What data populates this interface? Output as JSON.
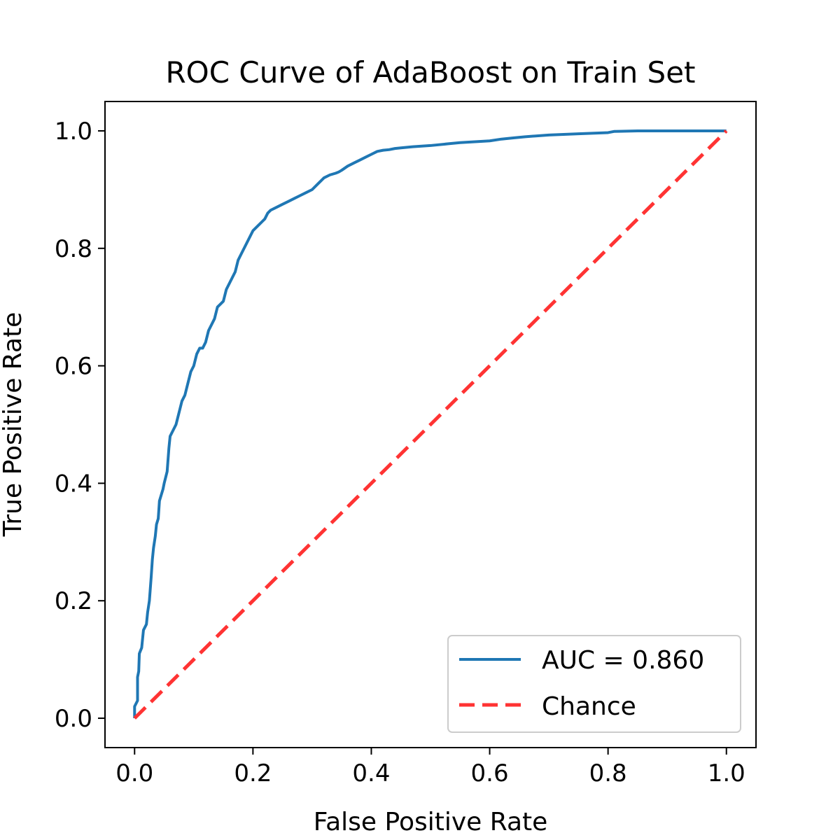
{
  "chart_data": {
    "type": "line",
    "title": "ROC Curve of AdaBoost on Train Set",
    "xlabel": "False Positive Rate",
    "ylabel": "True Positive Rate",
    "xlim": [
      -0.05,
      1.05
    ],
    "ylim": [
      -0.05,
      1.05
    ],
    "xticks": [
      0.0,
      0.2,
      0.4,
      0.6,
      0.8,
      1.0
    ],
    "yticks": [
      0.0,
      0.2,
      0.4,
      0.6,
      0.8,
      1.0
    ],
    "xtick_labels": [
      "0.0",
      "0.2",
      "0.4",
      "0.6",
      "0.8",
      "1.0"
    ],
    "ytick_labels": [
      "0.0",
      "0.2",
      "0.4",
      "0.6",
      "0.8",
      "1.0"
    ],
    "grid": false,
    "legend_position": "lower-right",
    "series": [
      {
        "name": "AUC = 0.860",
        "color": "#1f77b4",
        "style": "solid",
        "x": [
          0.0,
          0.0,
          0.005,
          0.005,
          0.007,
          0.008,
          0.01,
          0.012,
          0.015,
          0.02,
          0.022,
          0.025,
          0.028,
          0.03,
          0.032,
          0.035,
          0.037,
          0.04,
          0.042,
          0.045,
          0.048,
          0.05,
          0.055,
          0.058,
          0.06,
          0.065,
          0.07,
          0.075,
          0.08,
          0.085,
          0.09,
          0.095,
          0.1,
          0.105,
          0.11,
          0.115,
          0.12,
          0.125,
          0.13,
          0.135,
          0.14,
          0.15,
          0.155,
          0.16,
          0.165,
          0.17,
          0.175,
          0.18,
          0.19,
          0.195,
          0.2,
          0.21,
          0.215,
          0.22,
          0.225,
          0.23,
          0.24,
          0.25,
          0.26,
          0.27,
          0.28,
          0.29,
          0.3,
          0.31,
          0.32,
          0.33,
          0.34,
          0.345,
          0.35,
          0.36,
          0.37,
          0.38,
          0.39,
          0.4,
          0.41,
          0.42,
          0.43,
          0.44,
          0.45,
          0.47,
          0.5,
          0.53,
          0.55,
          0.6,
          0.62,
          0.64,
          0.66,
          0.7,
          0.75,
          0.8,
          0.81,
          0.85,
          0.9,
          1.0
        ],
        "y": [
          0.0,
          0.02,
          0.03,
          0.07,
          0.08,
          0.11,
          0.115,
          0.12,
          0.15,
          0.16,
          0.18,
          0.2,
          0.24,
          0.27,
          0.29,
          0.31,
          0.33,
          0.34,
          0.37,
          0.38,
          0.39,
          0.4,
          0.42,
          0.46,
          0.48,
          0.49,
          0.5,
          0.52,
          0.54,
          0.55,
          0.57,
          0.59,
          0.6,
          0.62,
          0.63,
          0.63,
          0.64,
          0.66,
          0.67,
          0.68,
          0.7,
          0.71,
          0.73,
          0.74,
          0.75,
          0.76,
          0.78,
          0.79,
          0.81,
          0.82,
          0.83,
          0.84,
          0.845,
          0.85,
          0.86,
          0.865,
          0.87,
          0.875,
          0.88,
          0.885,
          0.89,
          0.895,
          0.9,
          0.91,
          0.92,
          0.925,
          0.928,
          0.93,
          0.933,
          0.94,
          0.945,
          0.95,
          0.955,
          0.96,
          0.965,
          0.967,
          0.968,
          0.97,
          0.971,
          0.973,
          0.975,
          0.978,
          0.98,
          0.983,
          0.986,
          0.988,
          0.99,
          0.993,
          0.995,
          0.997,
          0.999,
          1.0,
          1.0,
          1.0
        ]
      },
      {
        "name": "Chance",
        "color": "#ff3333",
        "style": "dashed",
        "x": [
          0.0,
          1.0
        ],
        "y": [
          0.0,
          1.0
        ]
      }
    ]
  }
}
